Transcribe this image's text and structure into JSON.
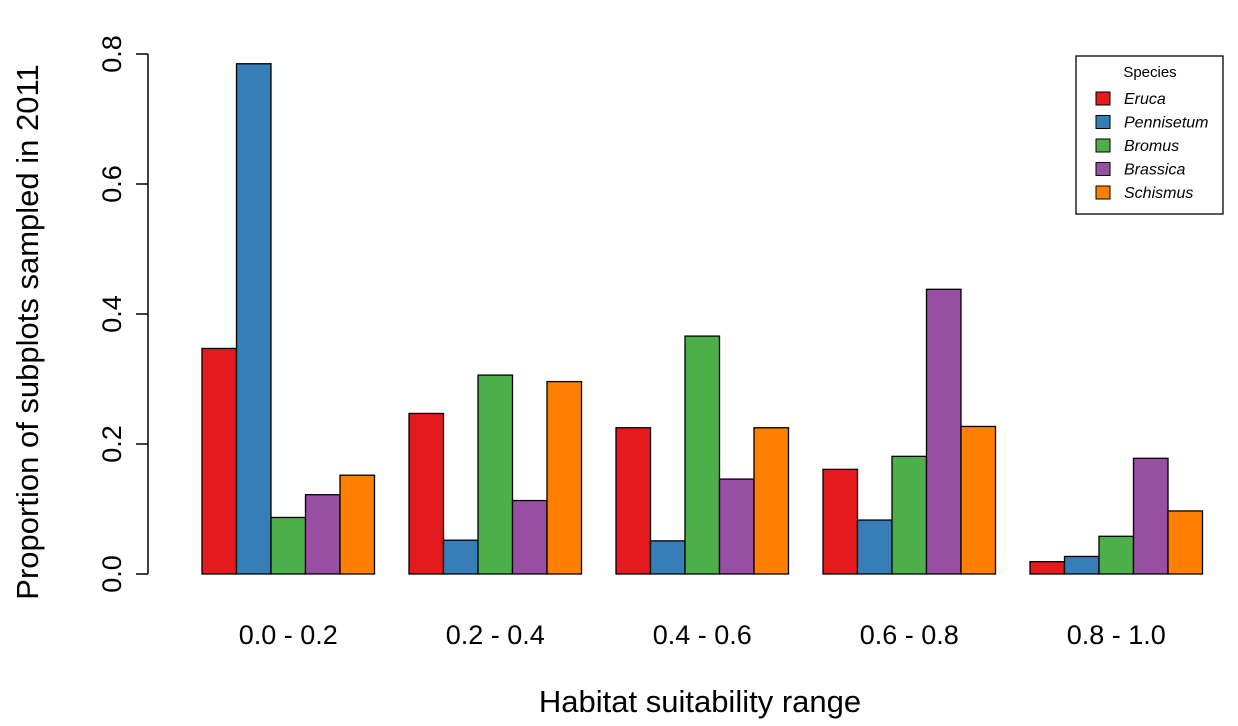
{
  "chart_data": {
    "type": "bar",
    "title": "",
    "xlabel": "Habitat suitability range",
    "ylabel": "Proportion of subplots sampled in 2011",
    "categories": [
      "0.0 - 0.2",
      "0.2 - 0.4",
      "0.4 - 0.6",
      "0.6 - 0.8",
      "0.8 - 1.0"
    ],
    "ylim": [
      0,
      0.8
    ],
    "yticks": [
      "0.0",
      "0.2",
      "0.4",
      "0.6",
      "0.8"
    ],
    "grid": false,
    "legend": {
      "title": "Species",
      "position": "top-right"
    },
    "series": [
      {
        "name": "Eruca",
        "color": "#e41a1c",
        "values": [
          0.347,
          0.247,
          0.225,
          0.161,
          0.019
        ]
      },
      {
        "name": "Pennisetum",
        "color": "#377eb8",
        "values": [
          0.785,
          0.052,
          0.051,
          0.083,
          0.027
        ]
      },
      {
        "name": "Bromus",
        "color": "#4daf4a",
        "values": [
          0.087,
          0.306,
          0.366,
          0.181,
          0.058
        ]
      },
      {
        "name": "Brassica",
        "color": "#984ea3",
        "values": [
          0.122,
          0.113,
          0.146,
          0.438,
          0.178
        ]
      },
      {
        "name": "Schismus",
        "color": "#ff7f00",
        "values": [
          0.152,
          0.296,
          0.225,
          0.227,
          0.097
        ]
      }
    ]
  }
}
